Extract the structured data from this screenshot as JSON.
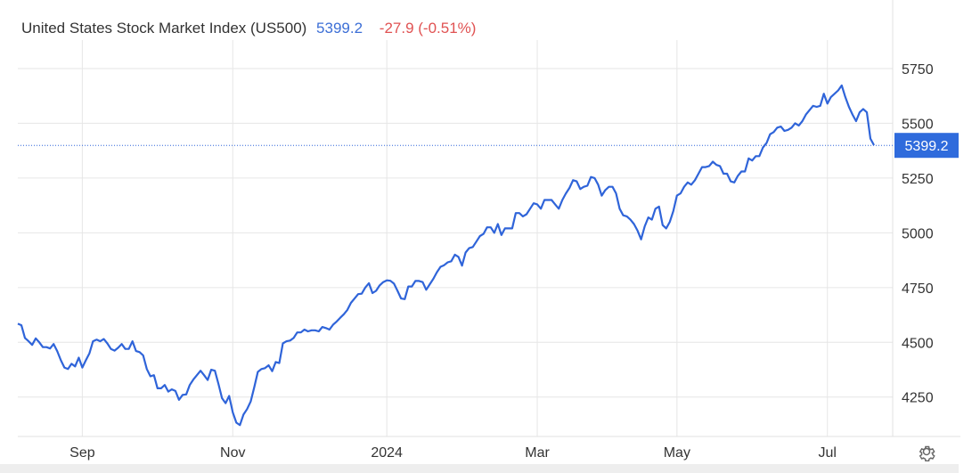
{
  "header": {
    "name": "United States Stock Market Index (US500)",
    "last": "5399.2",
    "change": "-27.9 (-0.51%)"
  },
  "colors": {
    "line": "#2f64d9",
    "up": "#3d6fd6",
    "down": "#e05252",
    "grid": "#e6e6e6",
    "tag_bg": "#2f6bdc"
  },
  "icons": {
    "settings": "gear-icon"
  },
  "chart_data": {
    "type": "line",
    "title": "",
    "xlabel": "",
    "ylabel": "",
    "ylim": [
      4070,
      5880
    ],
    "y_ticks": [
      4250,
      4500,
      4750,
      5000,
      5250,
      5500,
      5750
    ],
    "y_tick_labels": [
      "4250",
      "4500",
      "4750",
      "5000",
      "5250",
      "5500",
      "5750"
    ],
    "x_tick_labels": [
      "Sep",
      "Nov",
      "2024",
      "Mar",
      "May",
      "Jul"
    ],
    "x_tick_index": [
      18,
      60,
      103,
      145,
      184,
      226
    ],
    "last_value": 5399.2,
    "last_value_label": "5399.2",
    "grid": true,
    "series": [
      {
        "values": [
          4585,
          4578,
          4520,
          4505,
          4488,
          4518,
          4500,
          4478,
          4478,
          4472,
          4492,
          4460,
          4418,
          4385,
          4378,
          4402,
          4390,
          4430,
          4385,
          4418,
          4450,
          4505,
          4512,
          4505,
          4515,
          4495,
          4470,
          4462,
          4475,
          4492,
          4470,
          4470,
          4505,
          4460,
          4455,
          4440,
          4378,
          4345,
          4350,
          4290,
          4290,
          4305,
          4275,
          4285,
          4278,
          4237,
          4260,
          4262,
          4305,
          4330,
          4350,
          4370,
          4350,
          4328,
          4375,
          4370,
          4310,
          4245,
          4222,
          4255,
          4180,
          4133,
          4122,
          4170,
          4195,
          4230,
          4295,
          4365,
          4378,
          4382,
          4395,
          4368,
          4410,
          4405,
          4495,
          4505,
          4508,
          4520,
          4545,
          4545,
          4558,
          4550,
          4555,
          4555,
          4550,
          4570,
          4565,
          4558,
          4580,
          4595,
          4612,
          4628,
          4648,
          4680,
          4700,
          4720,
          4722,
          4750,
          4770,
          4725,
          4735,
          4760,
          4775,
          4783,
          4781,
          4768,
          4735,
          4700,
          4697,
          4755,
          4755,
          4780,
          4780,
          4775,
          4740,
          4765,
          4790,
          4820,
          4845,
          4852,
          4865,
          4870,
          4900,
          4890,
          4850,
          4910,
          4930,
          4935,
          4960,
          4985,
          4995,
          5025,
          5025,
          5000,
          5040,
          4990,
          5020,
          5020,
          5020,
          5090,
          5090,
          5075,
          5085,
          5110,
          5135,
          5130,
          5110,
          5150,
          5150,
          5150,
          5130,
          5110,
          5150,
          5180,
          5205,
          5240,
          5235,
          5200,
          5210,
          5215,
          5255,
          5250,
          5220,
          5170,
          5195,
          5210,
          5210,
          5180,
          5110,
          5080,
          5075,
          5060,
          5040,
          5010,
          4970,
          5030,
          5070,
          5060,
          5110,
          5120,
          5035,
          5020,
          5050,
          5100,
          5170,
          5180,
          5210,
          5230,
          5220,
          5240,
          5270,
          5300,
          5300,
          5305,
          5325,
          5310,
          5305,
          5270,
          5270,
          5235,
          5230,
          5260,
          5280,
          5280,
          5340,
          5330,
          5350,
          5350,
          5390,
          5410,
          5450,
          5460,
          5480,
          5485,
          5465,
          5470,
          5480,
          5500,
          5490,
          5510,
          5540,
          5560,
          5580,
          5575,
          5580,
          5635,
          5590,
          5620,
          5635,
          5650,
          5673,
          5620,
          5575,
          5540,
          5510,
          5550,
          5565,
          5550,
          5430,
          5400
        ]
      }
    ]
  }
}
